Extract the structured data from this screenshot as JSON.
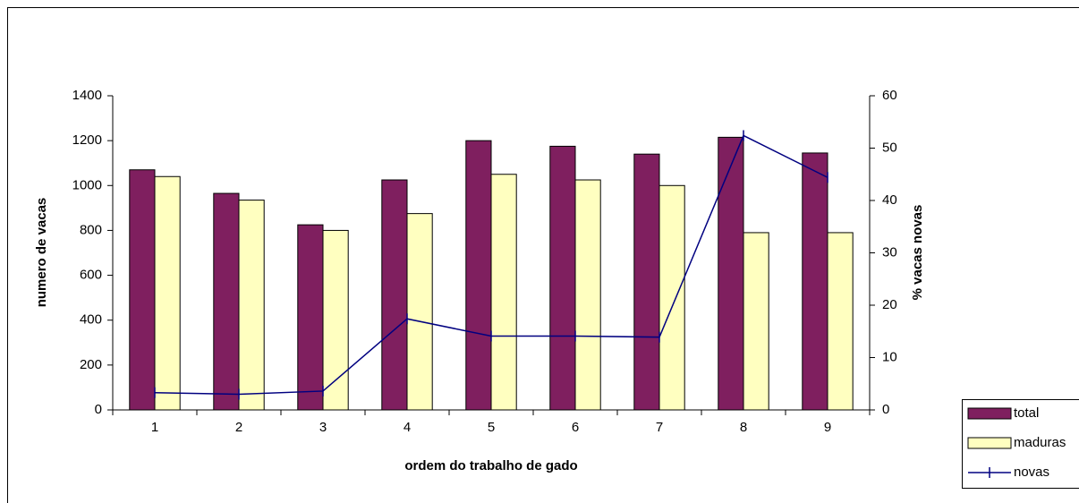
{
  "chart_data": {
    "type": "bar",
    "categories": [
      "1",
      "2",
      "3",
      "4",
      "5",
      "6",
      "7",
      "8",
      "9"
    ],
    "x_label": "ordem do trabalho de gado",
    "y_label": "numero de vacas",
    "y2_label": "% vacas novas",
    "series": [
      {
        "name": "total",
        "color": "#7f1f5f",
        "values": [
          1070,
          965,
          825,
          1025,
          1200,
          1175,
          1140,
          1215,
          1145
        ]
      },
      {
        "name": "maduras",
        "color": "#ffffc0",
        "values": [
          1040,
          935,
          800,
          875,
          1050,
          1025,
          1000,
          790,
          790
        ]
      },
      {
        "name": "novas",
        "type": "line",
        "axis": "y2",
        "color": "#000080",
        "values": [
          3.3,
          3.0,
          3.6,
          17.4,
          14.1,
          14.1,
          13.9,
          52.4,
          44.4
        ]
      }
    ],
    "ylim": [
      0,
      1400
    ],
    "yticks": [
      0,
      200,
      400,
      600,
      800,
      1000,
      1200,
      1400
    ],
    "y2lim": [
      0,
      60
    ],
    "y2ticks": [
      0,
      10,
      20,
      30,
      40,
      50,
      60
    ],
    "grid": false,
    "legend": "bottom-right"
  }
}
